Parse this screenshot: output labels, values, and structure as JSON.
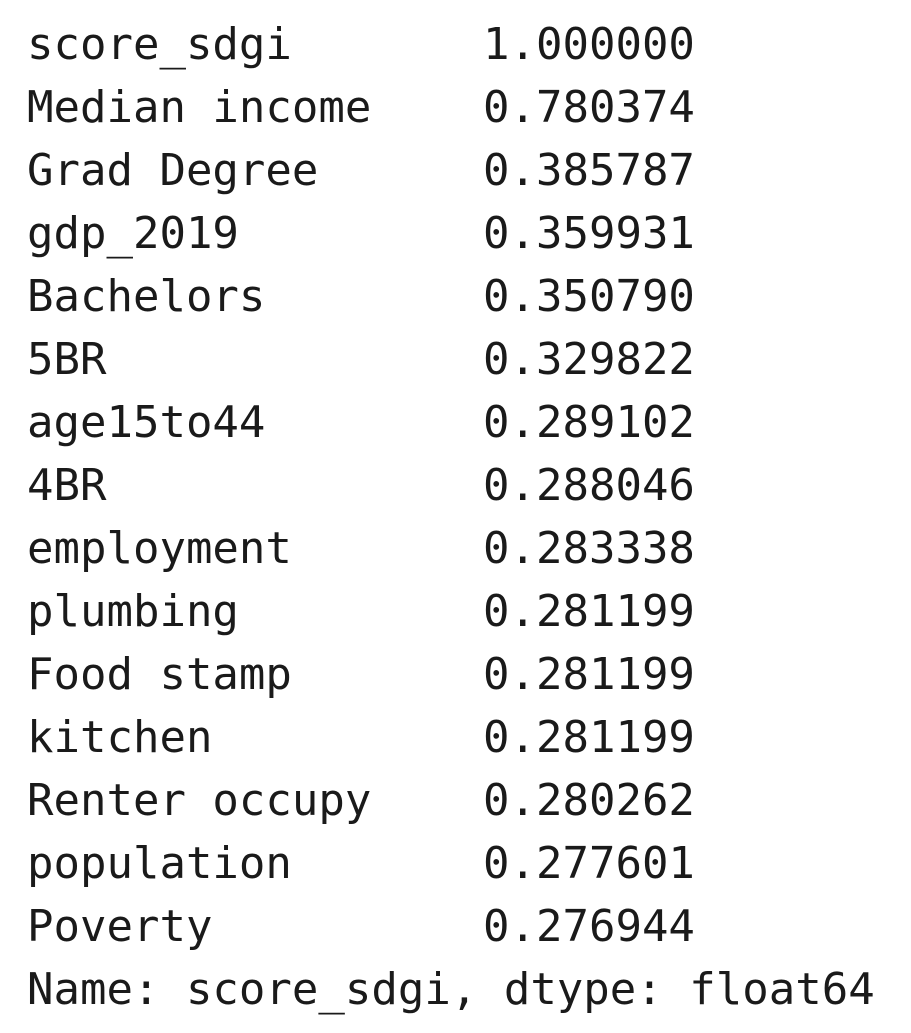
{
  "series_output": {
    "rows": [
      [
        "score_sdgi",
        "1.000000"
      ],
      [
        "Median income",
        "0.780374"
      ],
      [
        "Grad Degree",
        "0.385787"
      ],
      [
        "gdp_2019",
        "0.359931"
      ],
      [
        "Bachelors",
        "0.350790"
      ],
      [
        "5BR",
        "0.329822"
      ],
      [
        "age15to44",
        "0.289102"
      ],
      [
        "4BR",
        "0.288046"
      ],
      [
        "employment",
        "0.283338"
      ],
      [
        "plumbing",
        "0.281199"
      ],
      [
        "Food stamp",
        "0.281199"
      ],
      [
        "kitchen",
        "0.281199"
      ],
      [
        "Renter occupy",
        "0.280262"
      ],
      [
        "population",
        "0.277601"
      ],
      [
        "Poverty",
        "0.276944"
      ]
    ],
    "footer": "Name: score_sdgi, dtype: float64"
  }
}
